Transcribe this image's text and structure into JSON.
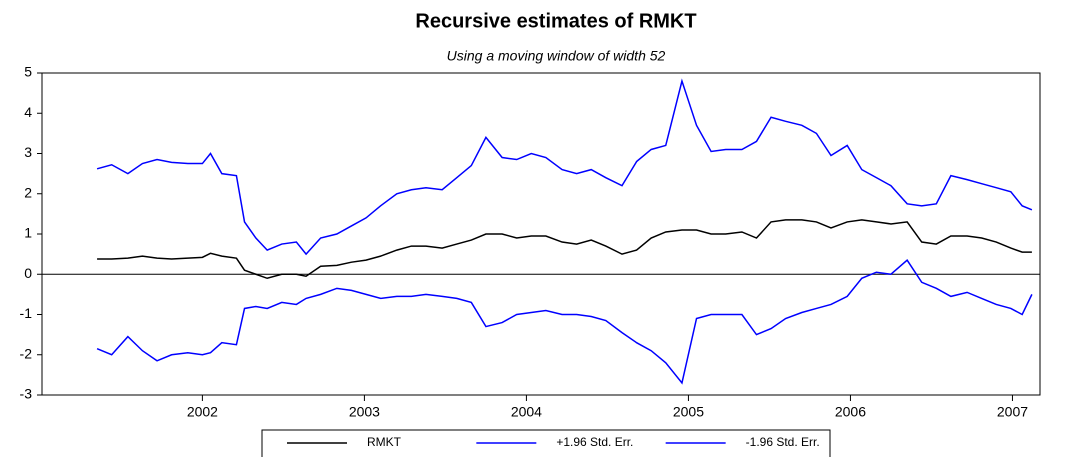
{
  "chart_data": {
    "type": "line",
    "title": "Recursive estimates of RMKT",
    "subtitle": "Using a moving window of width 52",
    "x": [
      2001.85,
      2001.94,
      2002.04,
      2002.13,
      2002.22,
      2002.31,
      2002.41,
      2002.5,
      2002.55,
      2002.62,
      2002.71,
      2002.76,
      2002.83,
      2002.9,
      2002.99,
      2003.08,
      2003.14,
      2003.23,
      2003.33,
      2003.42,
      2003.51,
      2003.6,
      2003.7,
      2003.79,
      2003.88,
      2003.98,
      2004.07,
      2004.16,
      2004.25,
      2004.35,
      2004.44,
      2004.53,
      2004.62,
      2004.72,
      2004.81,
      2004.9,
      2004.99,
      2005.09,
      2005.18,
      2005.27,
      2005.36,
      2005.46,
      2005.55,
      2005.64,
      2005.73,
      2005.83,
      2005.92,
      2006.01,
      2006.1,
      2006.2,
      2006.29,
      2006.38,
      2006.48,
      2006.57,
      2006.66,
      2006.75,
      2006.85,
      2006.94,
      2007.03,
      2007.12,
      2007.22,
      2007.31,
      2007.4,
      2007.49,
      2007.56,
      2007.62
    ],
    "series": [
      {
        "name": "RMKT",
        "color": "#000000",
        "values": [
          0.38,
          0.38,
          0.4,
          0.45,
          0.4,
          0.38,
          0.4,
          0.42,
          0.52,
          0.45,
          0.4,
          0.1,
          0.0,
          -0.1,
          0.0,
          0.0,
          -0.05,
          0.2,
          0.22,
          0.3,
          0.35,
          0.45,
          0.6,
          0.7,
          0.7,
          0.65,
          0.75,
          0.85,
          1.0,
          1.0,
          0.9,
          0.95,
          0.95,
          0.8,
          0.75,
          0.85,
          0.7,
          0.5,
          0.6,
          0.9,
          1.05,
          1.1,
          1.1,
          1.0,
          1.0,
          1.05,
          0.9,
          1.3,
          1.35,
          1.35,
          1.3,
          1.15,
          1.3,
          1.35,
          1.3,
          1.25,
          1.3,
          0.8,
          0.75,
          0.95,
          0.95,
          0.9,
          0.8,
          0.65,
          0.55,
          0.55
        ]
      },
      {
        "name": "+1.96 Std. Err.",
        "color": "#0000ff",
        "values": [
          2.62,
          2.72,
          2.5,
          2.75,
          2.85,
          2.78,
          2.75,
          2.75,
          3.0,
          2.5,
          2.45,
          1.3,
          0.9,
          0.6,
          0.75,
          0.8,
          0.5,
          0.9,
          1.0,
          1.2,
          1.4,
          1.7,
          2.0,
          2.1,
          2.15,
          2.1,
          2.4,
          2.7,
          3.4,
          2.9,
          2.85,
          3.0,
          2.9,
          2.6,
          2.5,
          2.6,
          2.4,
          2.2,
          2.8,
          3.1,
          3.2,
          4.8,
          3.7,
          3.05,
          3.1,
          3.1,
          3.3,
          3.9,
          3.8,
          3.7,
          3.5,
          2.95,
          3.2,
          2.6,
          2.4,
          2.2,
          1.75,
          1.7,
          1.75,
          2.45,
          2.35,
          2.25,
          2.15,
          2.05,
          1.7,
          1.6
        ]
      },
      {
        "name": "-1.96 Std. Err.",
        "color": "#0000ff",
        "values": [
          -1.85,
          -2.0,
          -1.55,
          -1.9,
          -2.15,
          -2.0,
          -1.95,
          -2.0,
          -1.95,
          -1.7,
          -1.75,
          -0.85,
          -0.8,
          -0.85,
          -0.7,
          -0.75,
          -0.6,
          -0.5,
          -0.35,
          -0.4,
          -0.5,
          -0.6,
          -0.55,
          -0.55,
          -0.5,
          -0.55,
          -0.6,
          -0.7,
          -1.3,
          -1.2,
          -1.0,
          -0.95,
          -0.9,
          -1.0,
          -1.0,
          -1.05,
          -1.15,
          -1.45,
          -1.7,
          -1.9,
          -2.2,
          -2.7,
          -1.1,
          -1.0,
          -1.0,
          -1.0,
          -1.5,
          -1.35,
          -1.1,
          -0.95,
          -0.85,
          -0.75,
          -0.55,
          -0.1,
          0.05,
          0.0,
          0.35,
          -0.2,
          -0.35,
          -0.55,
          -0.45,
          -0.6,
          -0.75,
          -0.85,
          -1.0,
          -0.5
        ]
      }
    ],
    "xlim": [
      2001.51,
      2007.67
    ],
    "xticks": [
      {
        "value": 2002.5,
        "label": "2002"
      },
      {
        "value": 2003.5,
        "label": "2003"
      },
      {
        "value": 2004.5,
        "label": "2004"
      },
      {
        "value": 2005.5,
        "label": "2005"
      },
      {
        "value": 2006.5,
        "label": "2006"
      },
      {
        "value": 2007.5,
        "label": "2007"
      }
    ],
    "ylim": [
      -3,
      5
    ],
    "yticks": [
      -3,
      -2,
      -1,
      0,
      1,
      2,
      3,
      4,
      5
    ],
    "zero_line": true,
    "legend": "bottom"
  }
}
